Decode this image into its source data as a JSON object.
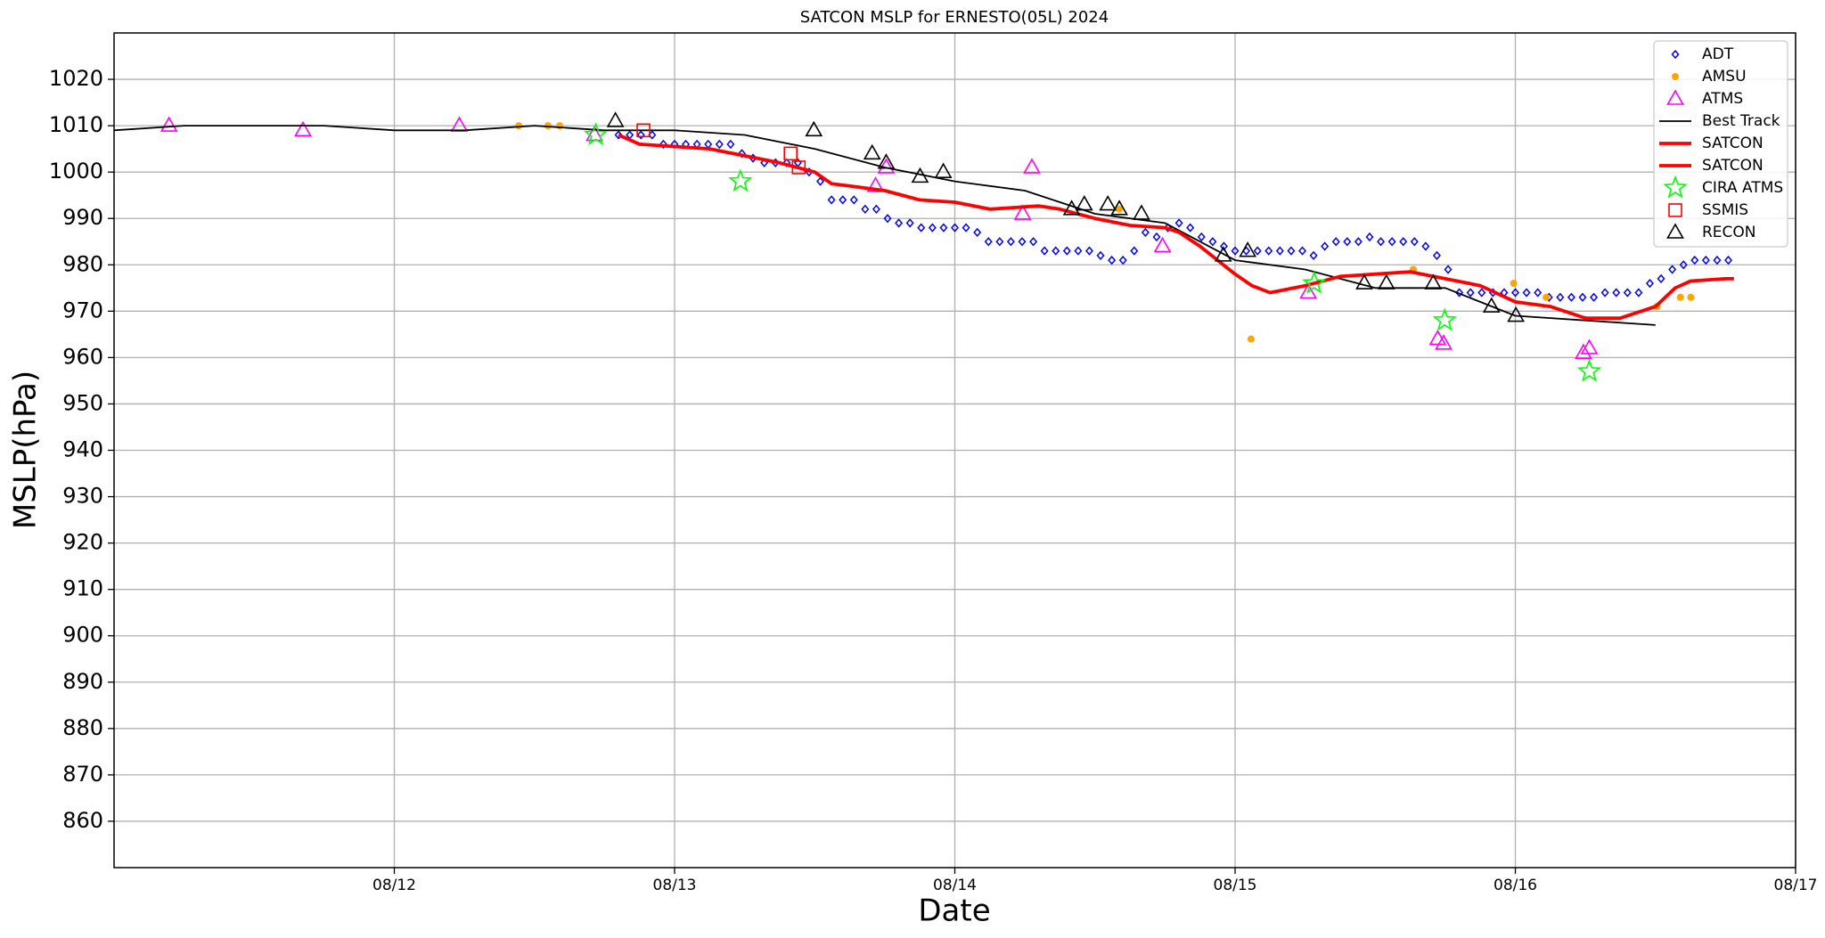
{
  "chart_data": {
    "type": "line",
    "title": "SATCON MSLP for ERNESTO(05L) 2024",
    "x_label": "Date",
    "y_label": "MSLP(hPa)",
    "xlim": [
      0,
      6
    ],
    "xticks": [
      {
        "value": 1,
        "label": "08/12"
      },
      {
        "value": 2,
        "label": "08/13"
      },
      {
        "value": 3,
        "label": "08/14"
      },
      {
        "value": 4,
        "label": "08/15"
      },
      {
        "value": 5,
        "label": "08/16"
      },
      {
        "value": 6,
        "label": "08/17"
      }
    ],
    "ylim": [
      850,
      1030
    ],
    "yticks": [
      860,
      870,
      880,
      890,
      900,
      910,
      920,
      930,
      940,
      950,
      960,
      970,
      980,
      990,
      1000,
      1010,
      1020
    ],
    "grid": true,
    "legend": "upper right",
    "series": [
      {
        "name": "ADT",
        "color": "#0000ff",
        "marker": "diamond",
        "x": [
          1.8,
          1.84,
          1.88,
          1.92,
          1.96,
          2.0,
          2.04,
          2.08,
          2.12,
          2.16,
          2.2,
          2.24,
          2.28,
          2.32,
          2.36,
          2.4,
          2.44,
          2.48,
          2.52,
          2.56,
          2.6,
          2.64,
          2.68,
          2.72,
          2.76,
          2.8,
          2.84,
          2.88,
          2.92,
          2.96,
          3.0,
          3.04,
          3.08,
          3.12,
          3.16,
          3.2,
          3.24,
          3.28,
          3.32,
          3.36,
          3.4,
          3.44,
          3.48,
          3.52,
          3.56,
          3.6,
          3.64,
          3.68,
          3.72,
          3.76,
          3.8,
          3.84,
          3.88,
          3.92,
          3.96,
          4.0,
          4.04,
          4.08,
          4.12,
          4.16,
          4.2,
          4.24,
          4.28,
          4.32,
          4.36,
          4.4,
          4.44,
          4.48,
          4.52,
          4.56,
          4.6,
          4.64,
          4.68,
          4.72,
          4.76,
          4.8,
          4.84,
          4.88,
          4.92,
          4.96,
          5.0,
          5.04,
          5.08,
          5.12,
          5.16,
          5.2,
          5.24,
          5.28,
          5.32,
          5.36,
          5.4,
          5.44,
          5.48,
          5.52,
          5.56,
          5.6,
          5.64,
          5.68,
          5.72,
          5.76
        ],
        "values": [
          1008,
          1008,
          1008,
          1008,
          1006,
          1006,
          1006,
          1006,
          1006,
          1006,
          1006,
          1004,
          1003,
          1002,
          1002,
          1002,
          1002,
          1000,
          998,
          994,
          994,
          994,
          992,
          992,
          990,
          989,
          989,
          988,
          988,
          988,
          988,
          988,
          987,
          985,
          985,
          985,
          985,
          985,
          983,
          983,
          983,
          983,
          983,
          982,
          981,
          981,
          983,
          987,
          986,
          988,
          989,
          988,
          986,
          985,
          984,
          983,
          983,
          983,
          983,
          983,
          983,
          983,
          982,
          984,
          985,
          985,
          985,
          986,
          985,
          985,
          985,
          985,
          984,
          982,
          979,
          974,
          974,
          974,
          974,
          974,
          974,
          974,
          974,
          973,
          973,
          973,
          973,
          973,
          974,
          974,
          974,
          974,
          976,
          977,
          979,
          980,
          981,
          981,
          981,
          981
        ]
      },
      {
        "name": "AMSU",
        "color": "#ffa500",
        "marker": "circle",
        "x": [
          1.444,
          1.548,
          1.59,
          3.587,
          4.057,
          4.636,
          4.994,
          5.11,
          5.505,
          5.589,
          5.626
        ],
        "values": [
          1010,
          1010,
          1010,
          992,
          964,
          979,
          976,
          973,
          971,
          973,
          973
        ]
      },
      {
        "name": "ATMS",
        "color": "#ff00ff",
        "marker": "triangle",
        "x": [
          0.196,
          0.674,
          1.232,
          1.714,
          2.717,
          2.755,
          3.242,
          3.275,
          3.741,
          4.261,
          4.723,
          4.744,
          5.243,
          5.264
        ],
        "values": [
          1010,
          1009,
          1010,
          1008,
          997,
          1001,
          991,
          1001,
          984,
          974,
          964,
          963,
          961,
          962
        ]
      },
      {
        "name": "Best Track",
        "color": "#000000",
        "marker": "line",
        "x": [
          0,
          0.25,
          0.75,
          1,
          1.25,
          1.5,
          1.75,
          2,
          2.25,
          2.5,
          2.75,
          3,
          3.25,
          3.5,
          3.75,
          4,
          4.25,
          4.5,
          4.75,
          5,
          5.25,
          5.5
        ],
        "values": [
          1009,
          1010,
          1010,
          1009,
          1009,
          1010,
          1009,
          1009,
          1008,
          1005,
          1001,
          998,
          996,
          991,
          989,
          981,
          979,
          975,
          975,
          969,
          968,
          967
        ]
      },
      {
        "name": "SATCON",
        "color": "#ff0000",
        "marker": "thickline",
        "x": [
          1.8,
          1.875,
          2.0,
          2.125,
          2.25,
          2.375,
          2.5,
          2.56,
          2.625,
          2.75,
          2.875,
          3.0,
          3.125,
          3.25,
          3.3,
          3.375,
          3.5,
          3.625,
          3.75,
          3.8,
          3.875,
          4.0,
          4.06,
          4.125,
          4.25,
          4.375,
          4.5,
          4.625,
          4.75,
          4.875,
          5.0,
          5.125,
          5.25,
          5.375,
          5.5,
          5.57,
          5.625,
          5.75,
          5.78
        ],
        "values": [
          1008,
          1006,
          1005.5,
          1005,
          1003.5,
          1002,
          1000,
          997.5,
          997,
          996,
          994,
          993.5,
          992,
          992.5,
          992.7,
          992,
          990,
          988.5,
          988,
          987,
          984,
          978,
          975.5,
          974,
          975.5,
          977.5,
          978,
          978.5,
          977,
          975.5,
          972,
          971,
          968.5,
          968.5,
          971,
          975,
          976.5,
          977,
          977
        ]
      },
      {
        "name": "SATCON",
        "color": "#ff0000",
        "marker": "thickline",
        "x": [],
        "values": []
      },
      {
        "name": "CIRA ATMS",
        "color": "#00ff00",
        "marker": "star",
        "x": [
          1.719,
          2.235,
          4.282,
          4.748,
          5.264
        ],
        "values": [
          1008,
          998,
          976,
          968,
          957
        ]
      },
      {
        "name": "SSMIS",
        "color": "#ff0000",
        "marker": "square",
        "x": [
          1.889,
          2.414,
          2.443
        ],
        "values": [
          1009,
          1004,
          1001
        ]
      },
      {
        "name": "RECON",
        "color": "#000000",
        "marker": "triangle",
        "x": [
          1.789,
          2.497,
          2.705,
          2.755,
          2.876,
          2.959,
          3.417,
          3.462,
          3.546,
          3.587,
          3.666,
          3.958,
          4.045,
          4.461,
          4.54,
          4.707,
          4.915,
          5.002
        ],
        "values": [
          1011,
          1009,
          1004,
          1002,
          999,
          1000,
          992,
          993,
          993,
          992,
          991,
          982,
          983,
          976,
          976,
          976,
          971,
          969
        ]
      }
    ]
  }
}
